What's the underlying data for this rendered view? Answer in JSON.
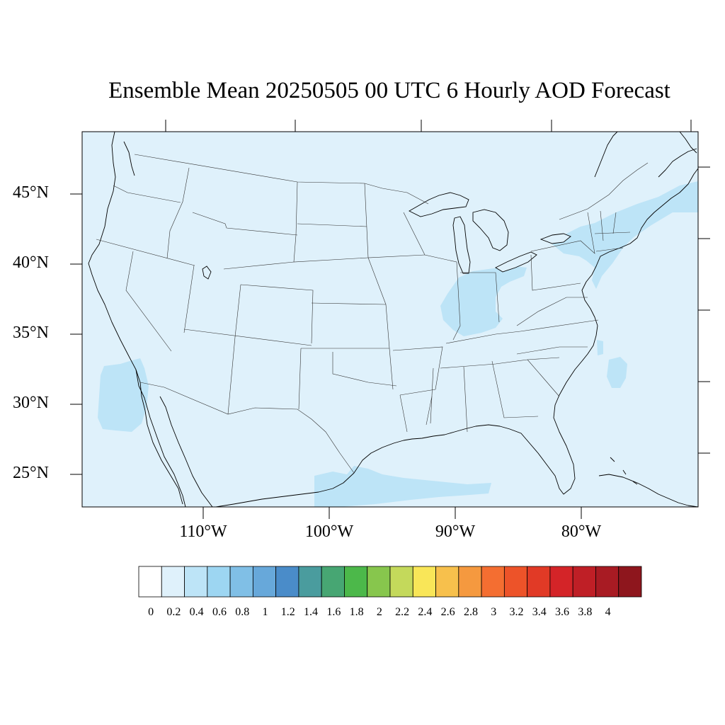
{
  "title": "Ensemble Mean 20250505 00 UTC 6 Hourly AOD Forecast",
  "map": {
    "projection": "lat-lon",
    "lon_range": [
      -118.6,
      -69.6
    ],
    "lat_range": [
      22.7,
      49.4
    ],
    "background_color": "#dff1fb",
    "lat_labels": [
      "45°N",
      "40°N",
      "35°N",
      "30°N",
      "25°N"
    ],
    "lon_labels": [
      "110°W",
      "100°W",
      "90°W",
      "80°W"
    ],
    "field_regions": [
      {
        "name": "Gulf of California plume",
        "level": "0.2-0.4"
      },
      {
        "name": "Western Gulf of Mexico",
        "level": "0.2-0.4"
      },
      {
        "name": "Ohio Valley / Indiana",
        "level": "0.2-0.4"
      },
      {
        "name": "Northeast US",
        "level": "0.2-0.4"
      },
      {
        "name": "Off Carolina coast",
        "level": "0.2-0.4"
      },
      {
        "name": "Remainder of domain",
        "level": "0-0.2"
      }
    ]
  },
  "colorbar": {
    "labels": [
      "0",
      "0.2",
      "0.4",
      "0.6",
      "0.8",
      "1",
      "1.2",
      "1.4",
      "1.6",
      "1.8",
      "2",
      "2.2",
      "2.4",
      "2.6",
      "2.8",
      "3",
      "3.2",
      "3.4",
      "3.6",
      "3.8",
      "4"
    ],
    "colors": [
      "#ffffff",
      "#dff1fb",
      "#bde4f7",
      "#9dd6f2",
      "#80bfe6",
      "#67a8da",
      "#4a8cc9",
      "#4a9c9e",
      "#47a673",
      "#4cb84a",
      "#87c64d",
      "#c4d95b",
      "#f9e658",
      "#f7c04c",
      "#f5993f",
      "#f46e31",
      "#ed5329",
      "#e13a26",
      "#d42428",
      "#bf1f26",
      "#a81b23",
      "#8e161d"
    ]
  }
}
